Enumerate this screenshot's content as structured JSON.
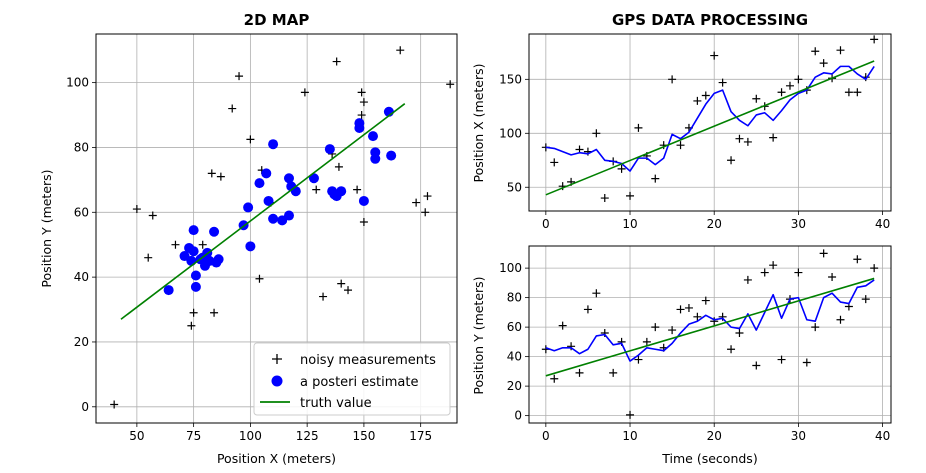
{
  "colors": {
    "measurement": "#000000",
    "estimate": "#0000ff",
    "truth": "#008000",
    "grid": "#b0b0b0"
  },
  "chart_data": [
    {
      "id": "map",
      "type": "scatter",
      "title": "2D MAP",
      "xlabel": "Position X (meters)",
      "ylabel": "Position Y (meters)",
      "xlim": [
        32,
        191
      ],
      "ylim": [
        -5,
        115
      ],
      "xticks": [
        50,
        75,
        100,
        125,
        150,
        175
      ],
      "yticks": [
        0,
        20,
        40,
        60,
        80,
        100
      ],
      "grid": true,
      "legend": {
        "placement": "lower-right",
        "entries": [
          "noisy measurements",
          "a posteri estimate",
          "truth value"
        ]
      },
      "series": [
        {
          "name": "noisy measurements",
          "marker": "+",
          "x": [
            40,
            50,
            55,
            57,
            67,
            74,
            75,
            79,
            83,
            84,
            87,
            92,
            95,
            100,
            104,
            105,
            109,
            117,
            124,
            129,
            132,
            136,
            138,
            139,
            140,
            143,
            147,
            149,
            149,
            150,
            150,
            166,
            173,
            177,
            178,
            188
          ],
          "y": [
            0.7,
            61,
            46,
            59,
            50,
            25,
            29,
            50,
            72,
            29,
            71,
            92,
            102,
            82.5,
            39.5,
            73,
            63,
            70,
            97,
            67,
            34,
            78,
            106.5,
            74,
            38,
            36,
            67,
            97,
            90,
            57,
            94,
            110,
            63,
            60,
            65,
            99.5
          ]
        },
        {
          "name": "a posteri estimate",
          "marker": "o",
          "x": [
            64,
            71,
            73,
            74,
            75,
            75,
            76,
            76,
            78,
            79,
            80,
            81,
            82,
            84,
            85,
            86,
            97,
            99,
            100,
            104,
            107,
            108,
            110,
            110,
            114,
            117,
            117,
            118,
            120,
            128,
            135,
            136,
            137,
            138,
            140,
            148,
            148,
            150,
            154,
            155,
            155,
            161,
            162
          ],
          "y": [
            36,
            46.5,
            49,
            45,
            54.5,
            48,
            37,
            40.5,
            45.5,
            46,
            43.5,
            47.5,
            45,
            54,
            44.5,
            45.5,
            56,
            61.5,
            49.5,
            69,
            72,
            63.5,
            81,
            58,
            57.5,
            70.5,
            59,
            68,
            66.5,
            70.5,
            79.5,
            66.5,
            65.5,
            65,
            66.5,
            87.5,
            86,
            63.5,
            83.5,
            76.5,
            78.5,
            91,
            77.5
          ]
        },
        {
          "name": "truth value",
          "type": "line",
          "x": [
            43,
            168
          ],
          "y": [
            27,
            93.5
          ]
        }
      ]
    },
    {
      "id": "gps_x",
      "type": "line",
      "title": "GPS DATA PROCESSING",
      "xlabel": "",
      "ylabel": "Position X (meters)",
      "xlim": [
        -2,
        41
      ],
      "ylim": [
        28,
        192
      ],
      "xticks": [
        0,
        10,
        20,
        30,
        40
      ],
      "yticks": [
        50,
        100,
        150
      ],
      "grid": true,
      "series": [
        {
          "name": "noisy measurements",
          "marker": "+",
          "x": [
            0,
            1,
            2,
            3,
            4,
            5,
            6,
            7,
            8,
            9,
            10,
            11,
            12,
            13,
            14,
            15,
            16,
            17,
            18,
            19,
            20,
            21,
            22,
            23,
            24,
            25,
            26,
            27,
            28,
            29,
            30,
            31,
            32,
            33,
            34,
            35,
            36,
            37,
            38,
            39
          ],
          "y": [
            87,
            73,
            51,
            55,
            85,
            83,
            100,
            40,
            74,
            67,
            42,
            105,
            79,
            58,
            89,
            150,
            89,
            105,
            130,
            135,
            172,
            147,
            75,
            95,
            92,
            132,
            125,
            96,
            138,
            144,
            150,
            140,
            176,
            165,
            151,
            177,
            138,
            138,
            152,
            187
          ]
        },
        {
          "name": "a posteri estimate",
          "x": [
            0,
            1,
            2,
            3,
            4,
            5,
            6,
            7,
            8,
            9,
            10,
            11,
            12,
            13,
            14,
            15,
            16,
            17,
            18,
            19,
            20,
            21,
            22,
            23,
            24,
            25,
            26,
            27,
            28,
            29,
            30,
            31,
            32,
            33,
            34,
            35,
            36,
            37,
            38,
            39
          ],
          "y": [
            87,
            86,
            83,
            80,
            82,
            81,
            85,
            75,
            74,
            72,
            65,
            77,
            77,
            71,
            77,
            99,
            95,
            101,
            114,
            127,
            137,
            140,
            120,
            112,
            107,
            117,
            119,
            112,
            121,
            131,
            137,
            140,
            152,
            156,
            155,
            162,
            162,
            155,
            150,
            162
          ]
        },
        {
          "name": "truth value",
          "x": [
            0,
            39
          ],
          "y": [
            43,
            167
          ]
        }
      ]
    },
    {
      "id": "gps_y",
      "type": "line",
      "title": "",
      "xlabel": "Time (seconds)",
      "ylabel": "Position Y (meters)",
      "xlim": [
        -2,
        41
      ],
      "ylim": [
        -5,
        115
      ],
      "xticks": [
        0,
        10,
        20,
        30,
        40
      ],
      "yticks": [
        0,
        20,
        40,
        60,
        80,
        100
      ],
      "grid": true,
      "series": [
        {
          "name": "noisy measurements",
          "marker": "+",
          "x": [
            0,
            1,
            2,
            3,
            4,
            5,
            6,
            7,
            8,
            9,
            10,
            11,
            12,
            13,
            14,
            15,
            16,
            17,
            18,
            19,
            20,
            21,
            22,
            23,
            24,
            25,
            26,
            27,
            28,
            29,
            30,
            31,
            32,
            33,
            34,
            35,
            36,
            37,
            38,
            39
          ],
          "y": [
            45,
            25,
            61,
            47,
            29,
            72,
            83,
            56,
            29,
            50,
            0.5,
            38,
            50,
            60,
            46,
            58,
            72,
            73,
            67,
            78,
            64,
            67,
            45,
            56,
            92,
            34,
            97,
            102,
            38,
            79,
            97,
            36,
            60,
            110,
            94,
            65,
            74,
            106,
            79,
            100
          ]
        },
        {
          "name": "a posteri estimate",
          "x": [
            0,
            1,
            2,
            3,
            4,
            5,
            6,
            7,
            8,
            9,
            10,
            11,
            12,
            13,
            14,
            15,
            16,
            17,
            18,
            19,
            20,
            21,
            22,
            23,
            24,
            25,
            26,
            27,
            28,
            29,
            30,
            31,
            32,
            33,
            34,
            35,
            36,
            37,
            38,
            39
          ],
          "y": [
            46,
            44,
            46,
            46,
            42,
            45,
            54,
            55,
            48,
            49,
            37,
            41,
            46,
            45,
            44,
            49,
            56,
            62,
            64,
            68,
            65,
            66,
            60,
            59,
            69,
            58,
            70,
            82,
            66,
            79,
            80,
            65,
            64,
            80,
            83,
            77,
            76,
            87,
            88,
            92
          ]
        },
        {
          "name": "truth value",
          "x": [
            0,
            39
          ],
          "y": [
            27,
            93
          ]
        }
      ]
    }
  ]
}
